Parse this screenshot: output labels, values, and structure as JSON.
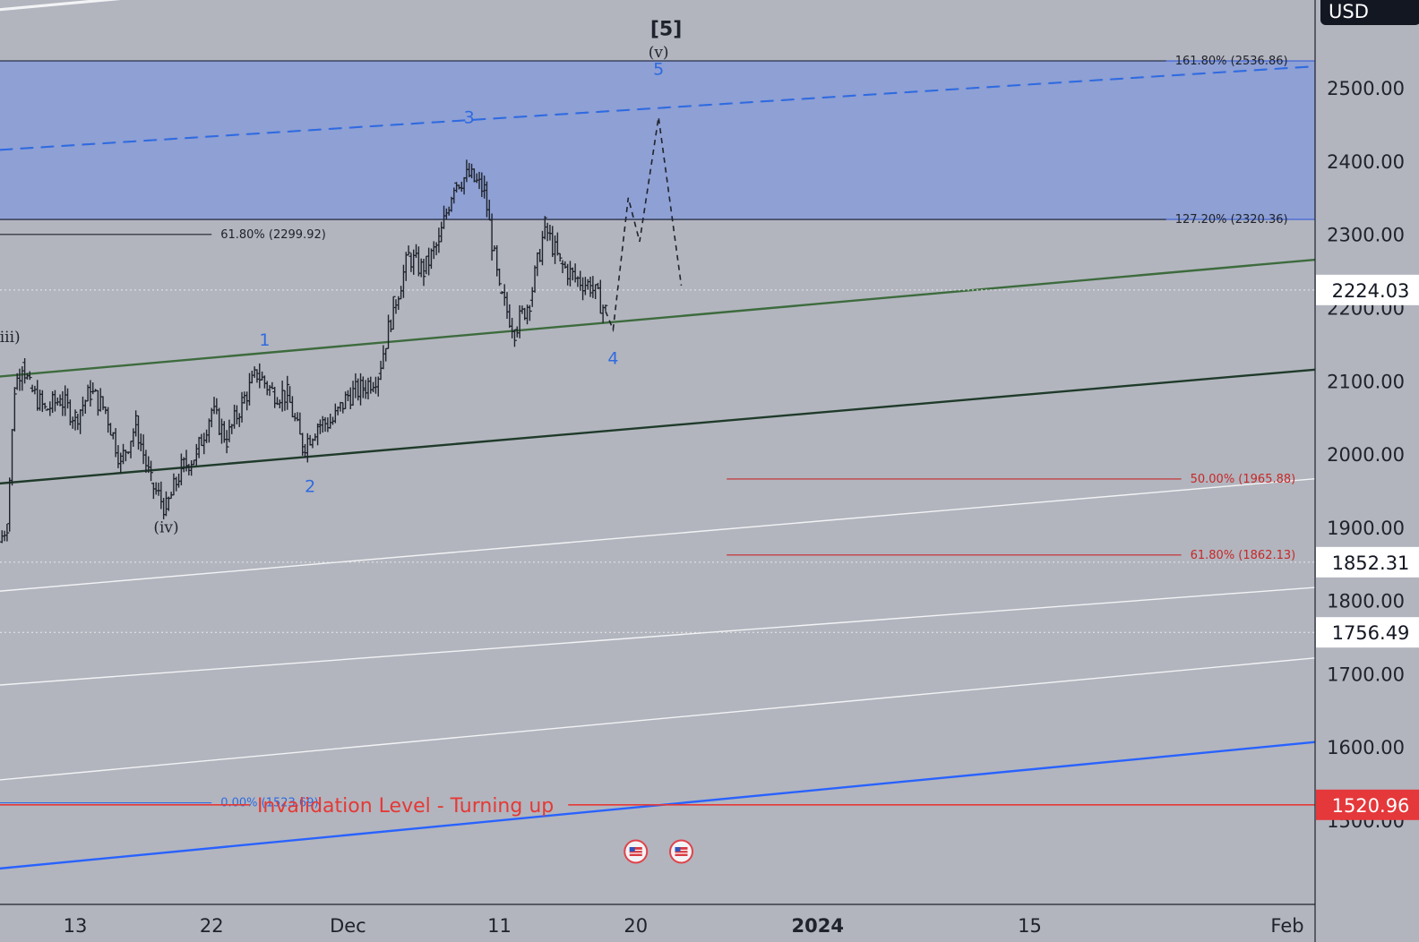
{
  "instrument": {
    "currency": "USD"
  },
  "colors": {
    "background": "#b2b5be",
    "candle": "#1f232c",
    "fib_black": "#20232b",
    "fib_red": "#c62828",
    "invalidation": "#e53935",
    "wave_blue": "#2f6ae0",
    "zone_fill": "#7b95e0",
    "channel_green": "#3d6b3d",
    "channel_dark": "#1f3a2a",
    "channel_blue": "#2962ff",
    "channel_white": "#f2f3f5"
  },
  "chart_data": {
    "type": "candlestick",
    "timeframe": "4h",
    "x_axis": {
      "ticks": [
        "13",
        "22",
        "Dec",
        "11",
        "20",
        "2024",
        "15",
        "Feb"
      ],
      "tick_dates": [
        "2023-11-13",
        "2023-11-22",
        "2023-12-01",
        "2023-12-11",
        "2023-12-20",
        "2024-01-01",
        "2024-01-15",
        "2024-02-01"
      ]
    },
    "y_axis": {
      "min": 1385,
      "max": 2620,
      "ticks": [
        2500,
        2400,
        2300,
        2200,
        2100,
        2000,
        1900,
        1800,
        1700,
        1600,
        1500
      ],
      "tick_labels": [
        "2500.00",
        "2400.00",
        "2300.00",
        "2200.00",
        "2100.00",
        "2000.00",
        "1900.00",
        "1800.00",
        "1700.00",
        "1600.00",
        "1500.00"
      ]
    },
    "price_tags": [
      {
        "value": 2224.03,
        "label": "2224.03",
        "style": "white"
      },
      {
        "value": 1852.31,
        "label": "1852.31",
        "style": "white"
      },
      {
        "value": 1756.49,
        "label": "1756.49",
        "style": "white"
      },
      {
        "value": 1520.96,
        "label": "1520.96",
        "style": "red"
      }
    ],
    "price_path": [
      {
        "date": "2023-11-08",
        "price": 1880
      },
      {
        "date": "2023-11-08 12:00",
        "price": 1905
      },
      {
        "date": "2023-11-09",
        "price": 2090
      },
      {
        "date": "2023-11-09 12:00",
        "price": 2125
      },
      {
        "date": "2023-11-10",
        "price": 2090
      },
      {
        "date": "2023-11-11",
        "price": 2060
      },
      {
        "date": "2023-11-12",
        "price": 2075
      },
      {
        "date": "2023-11-13",
        "price": 2050
      },
      {
        "date": "2023-11-14",
        "price": 2085
      },
      {
        "date": "2023-11-15",
        "price": 2060
      },
      {
        "date": "2023-11-16",
        "price": 1990
      },
      {
        "date": "2023-11-17",
        "price": 2040
      },
      {
        "date": "2023-11-18",
        "price": 1960
      },
      {
        "date": "2023-11-19",
        "price": 1925
      },
      {
        "date": "2023-11-20",
        "price": 1980
      },
      {
        "date": "2023-11-21",
        "price": 2000
      },
      {
        "date": "2023-11-22",
        "price": 2060
      },
      {
        "date": "2023-11-23",
        "price": 2020
      },
      {
        "date": "2023-11-24",
        "price": 2070
      },
      {
        "date": "2023-11-25",
        "price": 2110
      },
      {
        "date": "2023-11-26",
        "price": 2085
      },
      {
        "date": "2023-11-27",
        "price": 2080
      },
      {
        "date": "2023-11-28",
        "price": 2010
      },
      {
        "date": "2023-11-29",
        "price": 2040
      },
      {
        "date": "2023-11-30",
        "price": 2045
      },
      {
        "date": "2023-12-01",
        "price": 2080
      },
      {
        "date": "2023-12-02",
        "price": 2090
      },
      {
        "date": "2023-12-03",
        "price": 2110
      },
      {
        "date": "2023-12-04",
        "price": 2200
      },
      {
        "date": "2023-12-05",
        "price": 2270
      },
      {
        "date": "2023-12-06",
        "price": 2250
      },
      {
        "date": "2023-12-07",
        "price": 2290
      },
      {
        "date": "2023-12-08",
        "price": 2370
      },
      {
        "date": "2023-12-09",
        "price": 2380
      },
      {
        "date": "2023-12-10",
        "price": 2360
      },
      {
        "date": "2023-12-11",
        "price": 2220
      },
      {
        "date": "2023-12-12",
        "price": 2170
      },
      {
        "date": "2023-12-13",
        "price": 2210
      },
      {
        "date": "2023-12-14",
        "price": 2310
      },
      {
        "date": "2023-12-15",
        "price": 2260
      },
      {
        "date": "2023-12-16",
        "price": 2240
      },
      {
        "date": "2023-12-17",
        "price": 2230
      },
      {
        "date": "2023-12-18",
        "price": 2195
      }
    ],
    "projection": [
      {
        "date": "2023-12-18",
        "price": 2195
      },
      {
        "date": "2023-12-18 12:00",
        "price": 2170
      },
      {
        "date": "2023-12-19 12:00",
        "price": 2350
      },
      {
        "date": "2023-12-20 06:00",
        "price": 2290
      },
      {
        "date": "2023-12-21 12:00",
        "price": 2460
      },
      {
        "date": "2023-12-23",
        "price": 2230
      }
    ],
    "target_zone": {
      "start_date": "2023-11-07",
      "top": 2536.86,
      "bottom": 2320.36
    },
    "fib_levels": [
      {
        "label": "161.80% (2536.86)",
        "value": 2536.86,
        "color": "fib_black",
        "start_date": "2023-10-30",
        "end_date": "2024-01-24",
        "label_date": "2024-01-24"
      },
      {
        "label": "127.20% (2320.36)",
        "value": 2320.36,
        "color": "fib_black",
        "start_date": "2023-10-30",
        "end_date": "2024-01-24",
        "label_date": "2024-01-24"
      },
      {
        "label": "61.80% (2299.92)",
        "value": 2299.92,
        "color": "fib_black",
        "start_date": "2023-10-30",
        "end_date": "2023-11-22",
        "label_date": "2023-11-22"
      },
      {
        "label": "50.00% (1965.88)",
        "value": 1965.88,
        "color": "fib_red",
        "start_date": "2023-12-26",
        "end_date": "2024-01-25",
        "label_date": "2024-01-25"
      },
      {
        "label": "61.80% (1862.13)",
        "value": 1862.13,
        "color": "fib_red",
        "start_date": "2023-12-26",
        "end_date": "2024-01-25",
        "label_date": "2024-01-25"
      },
      {
        "label": "0.00% (1523.69)",
        "value": 1523.69,
        "color": "wave_blue",
        "start_date": "2023-10-30",
        "end_date": "2023-11-22",
        "label_date": "2023-11-22"
      }
    ],
    "invalidation": {
      "label": "Invalidation Level - Turning up",
      "value": 1520.96,
      "label_date": "2023-11-25"
    },
    "channels": [
      {
        "color": "channel_white",
        "width": 3.2,
        "p1": {
          "date": "2023-11-07",
          "price": 2605
        },
        "p2": {
          "date": "2024-01-07",
          "price": 2720
        }
      },
      {
        "color": "wave_blue",
        "width": 2,
        "dash": true,
        "p1": {
          "date": "2023-11-07",
          "price": 2414
        },
        "p2": {
          "date": "2024-02-01",
          "price": 2527
        }
      },
      {
        "color": "channel_green",
        "width": 2.4,
        "p1": {
          "date": "2023-11-07",
          "price": 2104
        },
        "p2": {
          "date": "2024-02-01",
          "price": 2262
        }
      },
      {
        "color": "channel_dark",
        "width": 2.4,
        "p1": {
          "date": "2023-11-07",
          "price": 1958
        },
        "p2": {
          "date": "2024-02-01",
          "price": 2112
        }
      },
      {
        "color": "channel_white",
        "width": 1.4,
        "p1": {
          "date": "2023-11-07",
          "price": 1811
        },
        "p2": {
          "date": "2024-02-01",
          "price": 1963
        }
      },
      {
        "color": "channel_white",
        "width": 1.4,
        "p1": {
          "date": "2023-11-07",
          "price": 1683
        },
        "p2": {
          "date": "2024-02-01",
          "price": 1815
        }
      },
      {
        "color": "channel_white",
        "width": 1.4,
        "p1": {
          "date": "2023-11-07",
          "price": 1553
        },
        "p2": {
          "date": "2024-02-01",
          "price": 1718
        }
      },
      {
        "color": "channel_blue",
        "width": 2.4,
        "p1": {
          "date": "2023-11-07",
          "price": 1432
        },
        "p2": {
          "date": "2024-02-01",
          "price": 1603
        }
      }
    ],
    "wave_labels": [
      {
        "text": "[5]",
        "date": "2023-12-22",
        "price": 2572,
        "style": "bracket"
      },
      {
        "text": "(v)",
        "date": "2023-12-21 12:00",
        "price": 2542,
        "style": "dark"
      },
      {
        "text": "5",
        "date": "2023-12-21 12:00",
        "price": 2518,
        "style": "blue"
      },
      {
        "text": "3",
        "date": "2023-12-09",
        "price": 2452,
        "style": "blue"
      },
      {
        "text": "1",
        "date": "2023-11-25 12:00",
        "price": 2148,
        "style": "blue"
      },
      {
        "text": "2",
        "date": "2023-11-28 12:00",
        "price": 1948,
        "style": "blue"
      },
      {
        "text": "4",
        "date": "2023-12-18 12:00",
        "price": 2123,
        "style": "blue"
      },
      {
        "text": "(iii)",
        "date": "2023-11-08 12:00",
        "price": 2153,
        "style": "dark"
      },
      {
        "text": "(iv)",
        "date": "2023-11-19",
        "price": 1893,
        "style": "dark"
      }
    ],
    "events": [
      {
        "date": "2023-12-20",
        "label": "us-flag-icon"
      },
      {
        "date": "2023-12-23",
        "label": "us-flag-icon"
      }
    ]
  }
}
